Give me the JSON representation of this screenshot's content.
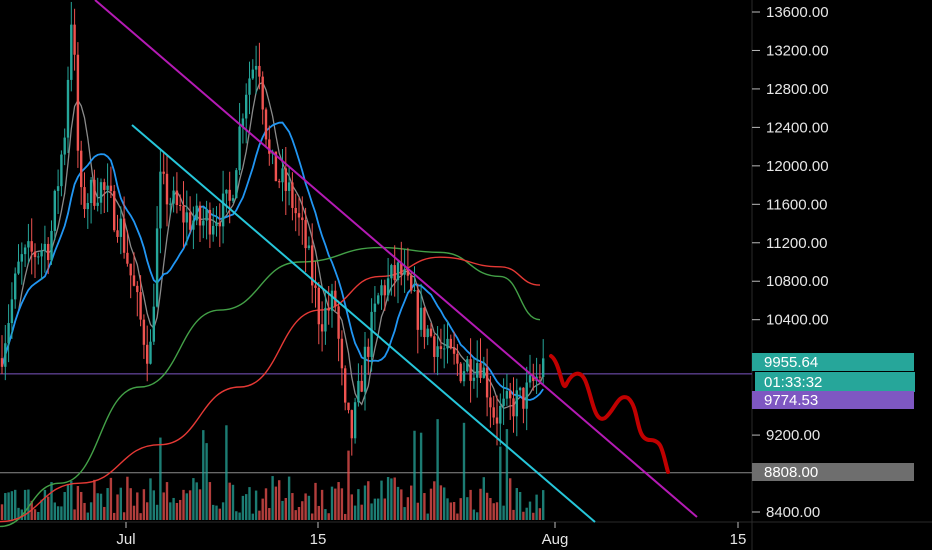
{
  "chart_data": {
    "type": "candlestick",
    "y_ticks": [
      13600,
      13200,
      12800,
      12400,
      12000,
      11600,
      11200,
      10800,
      10400,
      9200,
      8400
    ],
    "y_tick_labels": [
      "13600.00",
      "13200.00",
      "12800.00",
      "12400.00",
      "12000.00",
      "11600.00",
      "11200.00",
      "10800.00",
      "10400.00",
      "9200.00",
      "8400.00"
    ],
    "x_tick_labels": [
      "Jul",
      "15",
      "Aug",
      "15"
    ],
    "price_tags": [
      {
        "label": "9955.64",
        "value": 9955.64,
        "color": "#26a69a",
        "text_color": "#ffffff"
      },
      {
        "label": "01:33:32",
        "value": 9830,
        "color": "#26a69a",
        "text_color": "#ffffff",
        "outline": true
      },
      {
        "label": "9774.53",
        "value": 9774.53,
        "color": "#7e57c2",
        "text_color": "#ffffff"
      },
      {
        "label": "8808.00",
        "value": 8808,
        "color": "#6e6e6e",
        "text_color": "#ffffff"
      }
    ],
    "horizontal_lines": [
      {
        "value": 9836,
        "color": "#7e57c2"
      },
      {
        "value": 8808,
        "color": "#8a8a8a"
      }
    ],
    "series": [
      {
        "name": "",
        "color": "#ffffff",
        "values": []
      }
    ],
    "colors": {
      "up": "#26a69a",
      "down": "#ef5350",
      "background": "#000000",
      "ma_fast": "#8a8a8a",
      "ma_mid": "#2196f3",
      "ma_slow": "#43a047",
      "ma_long": "#e53935",
      "channel": "#26c6da",
      "resistance": "#b41ab4",
      "projection": "#c00000"
    }
  }
}
